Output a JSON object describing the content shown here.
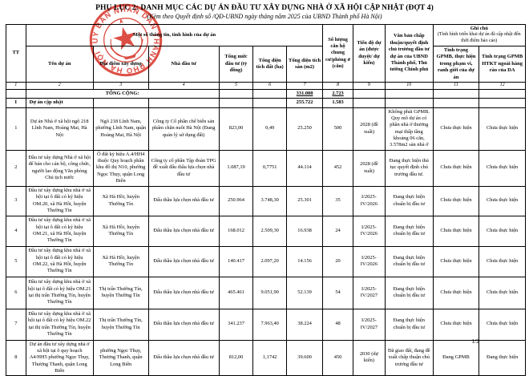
{
  "title": "PHỤ LỤC 2: DANH MỤC CÁC DỰ ÁN ĐẦU TƯ XÂY DỰNG NHÀ Ở XÃ HỘI CẬP NHẬT (ĐỢT 4)",
  "subtitle": "(Kèm theo Quyết định số       /QĐ-UBND ngày       tháng       năm 2025 của UBND Thành phố Hà Nội)",
  "stamp": {
    "ring_text": "ỦY BAN NHÂN DÂN THÀNH PHỐ HÀ NỘI",
    "color": "#d8352a"
  },
  "table": {
    "headers": {
      "tt": "TT",
      "group_info": "Một số thông tin, tình hình của dự án",
      "name": "Tên dự án",
      "location": "Địa điểm xây dựng",
      "investor": "Nhà đầu tư",
      "capital": "Tổng mức đầu tư (tỷ đồng)",
      "land_area": "Tổng diện tích đất (ha)",
      "floor_area": "Tổng diện tích sàn (m2)",
      "units": "Số lượng căn hộ chung cư/phòng ở (căn)",
      "schedule": "Tiến độ dự án (được duyệt/ dự kiến)",
      "approval": "Văn bản chấp thuận/quyết định chủ trương đầu tư dự án của UBND Thành phố, Thủ tướng Chính phủ",
      "note_group": "Ghi chú",
      "note_group_sub": "(Tình hình triển khai dự án đã cập nhật đến thời điểm báo cáo)",
      "gpmb_scope": "Tình trạng GPMB, thực hiện trong phạm vi, ranh giới của dự án",
      "gpmb_htkt": "Tình trạng GPMB HTKT ngoài hàng rào của DA"
    },
    "column_numbers": {
      "c1": "1",
      "c2": "2",
      "c3": "3",
      "c4": "4",
      "c5": "5",
      "c6": "6",
      "c7": "7",
      "c8": "8",
      "c9": "9",
      "c10": "10",
      "c11": "11",
      "c12": "12"
    },
    "total_row": {
      "label": "TỔNG CỘNG:",
      "floor_area": "331.088",
      "units": "2.723"
    },
    "section_row": {
      "tt": "I",
      "label": "Dự án cập nhật",
      "floor_area": "255.722",
      "units": "1.583"
    },
    "rows": [
      {
        "tt": "1",
        "name": "Dự án Nhà ở xã hội ngõ 218 Lĩnh Nam, Hoàng Mai, Hà Nội",
        "location": "Ngõ 218 Lĩnh Nam, phường Lĩnh Nam, quận Hoàng Mai, Hà Nội",
        "investor": "Công ty Cổ phần chế biến sản phẩm chăn nuôi Hà Nội (Đang quản lý sử dụng đất)",
        "capital": "823,00",
        "land_area": "0,49",
        "floor_area": "25.250",
        "units": "500",
        "schedule": "2028 (đề xuất)",
        "approval": "Không phải GPMB. Quy mô dự án có phần nhà ở thương mại thấp tầng khoảng 06 căn, 3.578m2 sàn nhà ở",
        "gpmb_scope": "Chưa thực hiện",
        "gpmb_htkt": "Chưa thực hiện"
      },
      {
        "tt": "2",
        "name": "Đầu tư xây dựng Nhà ở xã hội để bán cho cán bộ, công chức, người lao động Văn phòng Chủ tịch nước",
        "location": "Ô đất ký hiệu A.4/HH4 thuộc Quy hoạch phân khu đô thị N10, phường Ngọc Thụy, quận Long Biên",
        "investor": "Công ty cổ phần Tập đoàn TPG đề xuất đấu thầu lựa chọn nhà đầu tư",
        "capital": "1.087,19",
        "land_area": "0,7751",
        "floor_area": "44.114",
        "units": "452",
        "schedule": "2028 (đề xuất)",
        "approval": "Đang thực hiện thủ tục quyết định chủ trương đầu tư.",
        "gpmb_scope": "Chưa thực hiện",
        "gpmb_htkt": "Chưa thực hiện"
      },
      {
        "tt": "3",
        "name": "Đầu tư xây dựng khu nhà ở xã hội tại ô đất có ký hiệu OM.20, xã Hà Hồi, huyện Thường Tín",
        "location": "Xã Hà Hồi, huyện Thường Tín",
        "investor": "Đấu thầu lựa chọn nhà đầu tư",
        "capital": "250.964",
        "land_area": "3.748,30",
        "floor_area": "25.301",
        "units": "35",
        "schedule": "I/2025-IV/2026",
        "approval": "Đang thực hiện chuẩn bị đầu tư",
        "gpmb_scope": "Chưa thực hiện",
        "gpmb_htkt": "Chưa thực hiện"
      },
      {
        "tt": "4",
        "name": "Đầu tư xây dựng khu nhà ở xã hội tại ô đất có ký hiệu OM.21, xã Hà Hồi, huyện Thường Tín",
        "location": "Xã Hà Hồi, huyện Thường Tín",
        "investor": "Đấu thầu lựa chọn nhà đầu tư",
        "capital": "168.012",
        "land_area": "2.509,30",
        "floor_area": "16.938",
        "units": "24",
        "schedule": "I/2025-IV/2026",
        "approval": "Đang thực hiện chuẩn bị đầu tư",
        "gpmb_scope": "Chưa thực hiện",
        "gpmb_htkt": "Chưa thực hiện"
      },
      {
        "tt": "5",
        "name": "Đầu tư xây dựng khu nhà ở xã hội tại ô đất có ký hiệu OM.22, xã Hà Hồi, huyện Thường Tín",
        "location": "Xã Hà Hồi, huyện Thường Tín",
        "investor": "Đấu thầu lựa chọn nhà đầu tư",
        "capital": "140.417",
        "land_area": "2.097,20",
        "floor_area": "14.156",
        "units": "20",
        "schedule": "I/2025-IV/2026",
        "approval": "Đang thực hiện chuẩn bị đầu tư",
        "gpmb_scope": "Chưa thực hiện",
        "gpmb_htkt": "Chưa thực hiện"
      },
      {
        "tt": "6",
        "name": "Đầu tư xây dựng khu nhà ở xã hội tại ô đất có ký hiệu OM.21 tại thị trấn Thường Tín, huyện Thường Tín",
        "location": "Thị trấn Thường Tín, huyện Thường Tín",
        "investor": "Đấu thầu lựa chọn nhà đầu tư",
        "capital": "465.461",
        "land_area": "9.051,90",
        "floor_area": "52.139",
        "units": "54",
        "schedule": "I/2025-IV/2027",
        "approval": "Đang thực hiện chuẩn bị đầu tư",
        "gpmb_scope": "Chưa thực hiện",
        "gpmb_htkt": "Chưa thực hiện"
      },
      {
        "tt": "7",
        "name": "Đầu tư xây dựng khu nhà ở xã hội tại ô đất có ký hiệu OM.22 tại thị trấn Thường Tín, huyện Thường Tín",
        "location": "Thị trấn Thường Tín, huyện Thường Tín",
        "investor": "Đấu thầu lựa chọn nhà đầu tư",
        "capital": "341.237",
        "land_area": "7.963,40",
        "floor_area": "38.224",
        "units": "48",
        "schedule": "I/2025-IV/2027",
        "approval": "Đang thực hiện chuẩn bị đầu tư",
        "gpmb_scope": "Chưa thực hiện",
        "gpmb_htkt": "Chưa thực hiện"
      },
      {
        "tt": "8",
        "name": "Dự án đầu tư xây dựng nhà ở xã hội tại ô quy hoạch A4/HH5 phường Ngọc Thụy, Thượng Thanh, quận Long Biên",
        "location": "phường Ngọc Thụy, Thượng Thanh, quận Long Biên",
        "investor": "Đấu thầu lựa chọn nhà đầu tư",
        "capital": "812,00",
        "land_area": "1,1742",
        "floor_area": "39.600",
        "units": "450",
        "schedule": "2030 (dự kiến)",
        "approval": "Đã giao đất, đang đề xuất chấp thuận chủ trương đầu tư",
        "gpmb_scope": "Đang GPMB",
        "gpmb_htkt": "Đang thực hiện"
      }
    ]
  },
  "footer": {
    "page": "1/2"
  }
}
